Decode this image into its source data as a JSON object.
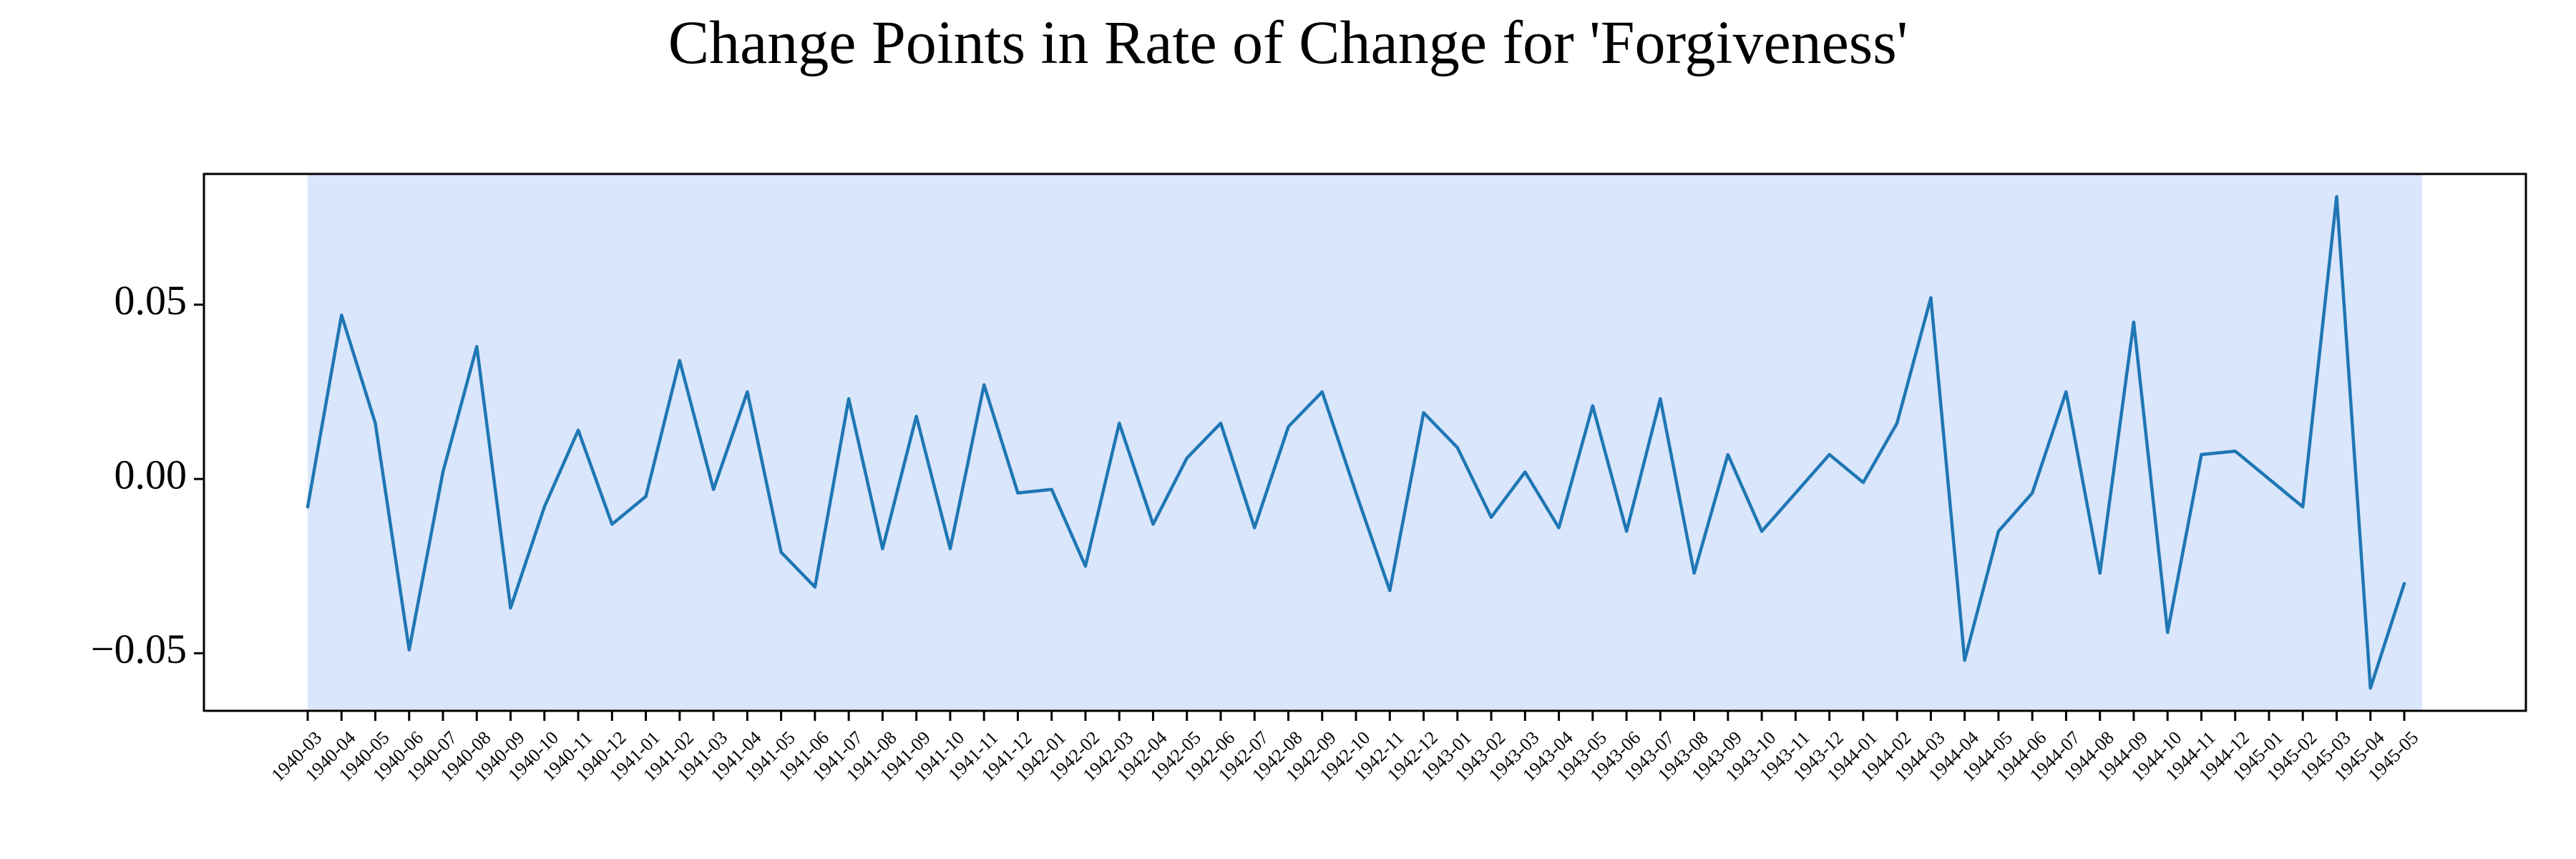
{
  "chart_data": {
    "type": "line",
    "title": "Change Points in Rate of Change for 'Forgiveness'",
    "xlabel": "",
    "ylabel": "",
    "ylim": [
      -0.0665,
      0.0875
    ],
    "y_ticks": [
      {
        "value": -0.05,
        "label": "−0.05"
      },
      {
        "value": 0.0,
        "label": "0.00"
      },
      {
        "value": 0.05,
        "label": "0.05"
      }
    ],
    "grid": false,
    "shaded_region": {
      "from": "1940-03",
      "to": "1945-05",
      "color": "#dae6fb"
    },
    "line_color": "#1f77b4",
    "categories": [
      "1940-03",
      "1940-04",
      "1940-05",
      "1940-06",
      "1940-07",
      "1940-08",
      "1940-09",
      "1940-10",
      "1940-11",
      "1940-12",
      "1941-01",
      "1941-02",
      "1941-03",
      "1941-04",
      "1941-05",
      "1941-06",
      "1941-07",
      "1941-08",
      "1941-09",
      "1941-10",
      "1941-11",
      "1941-12",
      "1942-01",
      "1942-02",
      "1942-03",
      "1942-04",
      "1942-05",
      "1942-06",
      "1942-07",
      "1942-08",
      "1942-09",
      "1942-10",
      "1942-11",
      "1942-12",
      "1943-01",
      "1943-02",
      "1943-03",
      "1943-04",
      "1943-05",
      "1943-06",
      "1943-07",
      "1943-08",
      "1943-09",
      "1943-10",
      "1943-11",
      "1943-12",
      "1944-01",
      "1944-02",
      "1944-03",
      "1944-04",
      "1944-05",
      "1944-06",
      "1944-07",
      "1944-08",
      "1944-09",
      "1944-10",
      "1944-11",
      "1944-12",
      "1945-01",
      "1945-02",
      "1945-03",
      "1945-04",
      "1945-05"
    ],
    "values": [
      -0.008,
      0.047,
      0.016,
      -0.049,
      0.002,
      0.038,
      -0.037,
      -0.008,
      0.014,
      -0.013,
      -0.005,
      0.034,
      -0.003,
      0.025,
      -0.021,
      -0.031,
      0.023,
      -0.02,
      0.018,
      -0.02,
      0.027,
      -0.004,
      -0.003,
      -0.025,
      0.016,
      -0.013,
      0.006,
      0.016,
      -0.014,
      0.015,
      0.025,
      -0.004,
      -0.032,
      0.019,
      0.009,
      -0.011,
      0.002,
      -0.014,
      0.021,
      -0.015,
      0.023,
      -0.027,
      0.007,
      -0.015,
      -0.004,
      0.007,
      -0.001,
      0.016,
      0.052,
      -0.052,
      -0.015,
      -0.004,
      0.025,
      -0.027,
      0.045,
      -0.044,
      0.007,
      0.008,
      0.0,
      -0.008,
      0.081,
      -0.06,
      -0.03
    ]
  }
}
